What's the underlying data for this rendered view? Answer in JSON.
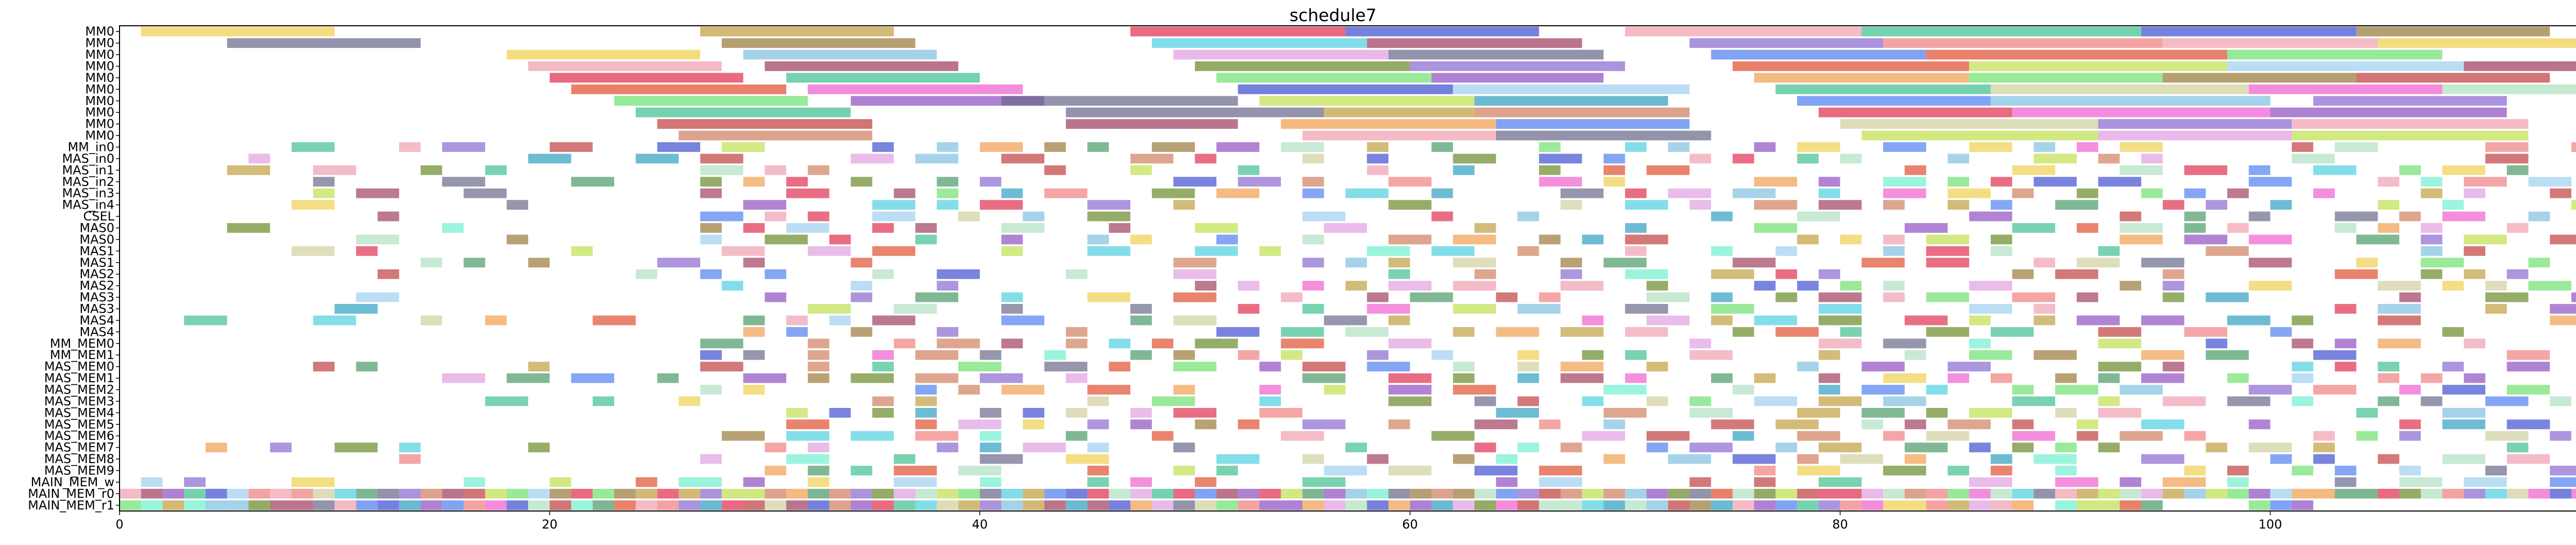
{
  "chart_data": {
    "type": "gantt",
    "title": "schedule7",
    "xlabel": "",
    "ylabel": "",
    "xlim": [
      0,
      118
    ],
    "x_ticks": [
      0,
      20,
      40,
      60,
      80,
      100
    ],
    "grid": false,
    "legend": "none",
    "rows": [
      "MM0",
      "MM0",
      "MM0",
      "MM0",
      "MM0",
      "MM0",
      "MM0",
      "MM0",
      "MM0",
      "MM0",
      "MM_in0",
      "MAS_in0",
      "MAS_in1",
      "MAS_in2",
      "MAS_in3",
      "MAS_in4",
      "CSEL",
      "MAS0",
      "MAS0",
      "MAS1",
      "MAS1",
      "MAS2",
      "MAS2",
      "MAS3",
      "MAS3",
      "MAS4",
      "MAS4",
      "MM_MEM0",
      "MM_MEM1",
      "MAS_MEM0",
      "MAS_MEM1",
      "MAS_MEM2",
      "MAS_MEM3",
      "MAS_MEM4",
      "MAS_MEM5",
      "MAS_MEM6",
      "MAS_MEM7",
      "MAS_MEM8",
      "MAS_MEM9",
      "MAIN_MEM_w",
      "MAIN_MEM_r0",
      "MAIN_MEM_r1"
    ],
    "palette": [
      "#f0a0b0",
      "#e03050",
      "#c0a040",
      "#6a8a2a",
      "#4050d0",
      "#a0d0f0",
      "#40c090",
      "#9050c0",
      "#f0d050",
      "#d08060",
      "#30a0c0",
      "#70e070",
      "#f060d0",
      "#6a6a8a",
      "#c04040",
      "#b0e0c0",
      "#f0a050",
      "#9a7a3a",
      "#50d0e0",
      "#e0a0e0",
      "#5080f0",
      "#a04060",
      "#c0e050",
      "#80c0e0",
      "#d0d0a0",
      "#4a9a6a",
      "#f08080",
      "#8a6ad0",
      "#70f0d0",
      "#e05030"
    ],
    "tasks": [
      {
        "row": 0,
        "start": 1,
        "end": 10,
        "color": 8
      },
      {
        "row": 0,
        "start": 27,
        "end": 36,
        "color": 2
      },
      {
        "row": 0,
        "start": 47,
        "end": 57,
        "color": 1
      },
      {
        "row": 0,
        "start": 57,
        "end": 66,
        "color": 4
      },
      {
        "row": 0,
        "start": 70,
        "end": 81,
        "color": 0
      },
      {
        "row": 0,
        "start": 81,
        "end": 94,
        "color": 6
      },
      {
        "row": 0,
        "start": 94,
        "end": 104,
        "color": 4
      },
      {
        "row": 0,
        "start": 104,
        "end": 113,
        "color": 17
      },
      {
        "row": 1,
        "start": 5,
        "end": 14,
        "color": 13
      },
      {
        "row": 1,
        "start": 28,
        "end": 37,
        "color": 17
      },
      {
        "row": 1,
        "start": 48,
        "end": 58,
        "color": 18
      },
      {
        "row": 1,
        "start": 58,
        "end": 68,
        "color": 21
      },
      {
        "row": 1,
        "start": 73,
        "end": 82,
        "color": 27
      },
      {
        "row": 1,
        "start": 82,
        "end": 95,
        "color": 26
      },
      {
        "row": 1,
        "start": 95,
        "end": 105,
        "color": 0
      },
      {
        "row": 1,
        "start": 105,
        "end": 116,
        "color": 8
      },
      {
        "row": 2,
        "start": 18,
        "end": 27,
        "color": 8
      },
      {
        "row": 2,
        "start": 29,
        "end": 38,
        "color": 23
      },
      {
        "row": 2,
        "start": 49,
        "end": 59,
        "color": 19
      },
      {
        "row": 2,
        "start": 59,
        "end": 69,
        "color": 13
      },
      {
        "row": 2,
        "start": 74,
        "end": 84,
        "color": 20
      },
      {
        "row": 2,
        "start": 84,
        "end": 98,
        "color": 29
      },
      {
        "row": 2,
        "start": 98,
        "end": 108,
        "color": 11
      },
      {
        "row": 3,
        "start": 19,
        "end": 28,
        "color": 0
      },
      {
        "row": 3,
        "start": 30,
        "end": 39,
        "color": 21
      },
      {
        "row": 3,
        "start": 50,
        "end": 60,
        "color": 3
      },
      {
        "row": 3,
        "start": 60,
        "end": 70,
        "color": 27
      },
      {
        "row": 3,
        "start": 75,
        "end": 86,
        "color": 29
      },
      {
        "row": 3,
        "start": 86,
        "end": 98,
        "color": 22
      },
      {
        "row": 3,
        "start": 98,
        "end": 109,
        "color": 5
      },
      {
        "row": 3,
        "start": 109,
        "end": 118,
        "color": 21
      },
      {
        "row": 4,
        "start": 20,
        "end": 29,
        "color": 1
      },
      {
        "row": 4,
        "start": 31,
        "end": 40,
        "color": 6
      },
      {
        "row": 4,
        "start": 51,
        "end": 61,
        "color": 11
      },
      {
        "row": 4,
        "start": 61,
        "end": 69,
        "color": 7
      },
      {
        "row": 4,
        "start": 76,
        "end": 86,
        "color": 16
      },
      {
        "row": 4,
        "start": 86,
        "end": 95,
        "color": 11
      },
      {
        "row": 4,
        "start": 95,
        "end": 104,
        "color": 17
      },
      {
        "row": 4,
        "start": 104,
        "end": 113,
        "color": 14
      },
      {
        "row": 5,
        "start": 21,
        "end": 31,
        "color": 29
      },
      {
        "row": 5,
        "start": 32,
        "end": 42,
        "color": 12
      },
      {
        "row": 5,
        "start": 52,
        "end": 62,
        "color": 4
      },
      {
        "row": 5,
        "start": 62,
        "end": 73,
        "color": 5
      },
      {
        "row": 5,
        "start": 77,
        "end": 87,
        "color": 6
      },
      {
        "row": 5,
        "start": 87,
        "end": 99,
        "color": 24
      },
      {
        "row": 5,
        "start": 99,
        "end": 108,
        "color": 12
      },
      {
        "row": 5,
        "start": 108,
        "end": 118,
        "color": 15
      },
      {
        "row": 6,
        "start": 23,
        "end": 32,
        "color": 11
      },
      {
        "row": 6,
        "start": 34,
        "end": 43,
        "color": 7
      },
      {
        "row": 6,
        "start": 41,
        "end": 52,
        "color": 13
      },
      {
        "row": 6,
        "start": 53,
        "end": 63,
        "color": 22
      },
      {
        "row": 6,
        "start": 63,
        "end": 72,
        "color": 10
      },
      {
        "row": 6,
        "start": 78,
        "end": 87,
        "color": 20
      },
      {
        "row": 6,
        "start": 87,
        "end": 100,
        "color": 23
      },
      {
        "row": 6,
        "start": 102,
        "end": 111,
        "color": 27
      },
      {
        "row": 7,
        "start": 24,
        "end": 34,
        "color": 6
      },
      {
        "row": 7,
        "start": 44,
        "end": 56,
        "color": 13
      },
      {
        "row": 7,
        "start": 56,
        "end": 63,
        "color": 2
      },
      {
        "row": 7,
        "start": 63,
        "end": 73,
        "color": 9
      },
      {
        "row": 7,
        "start": 79,
        "end": 88,
        "color": 1
      },
      {
        "row": 7,
        "start": 88,
        "end": 100,
        "color": 12
      },
      {
        "row": 7,
        "start": 100,
        "end": 111,
        "color": 7
      },
      {
        "row": 8,
        "start": 25,
        "end": 35,
        "color": 14
      },
      {
        "row": 8,
        "start": 44,
        "end": 52,
        "color": 21
      },
      {
        "row": 8,
        "start": 54,
        "end": 64,
        "color": 16
      },
      {
        "row": 8,
        "start": 64,
        "end": 73,
        "color": 20
      },
      {
        "row": 8,
        "start": 80,
        "end": 92,
        "color": 24
      },
      {
        "row": 8,
        "start": 92,
        "end": 101,
        "color": 27
      },
      {
        "row": 8,
        "start": 101,
        "end": 112,
        "color": 0
      },
      {
        "row": 9,
        "start": 26,
        "end": 35,
        "color": 9
      },
      {
        "row": 9,
        "start": 55,
        "end": 64,
        "color": 0
      },
      {
        "row": 9,
        "start": 64,
        "end": 74,
        "color": 13
      },
      {
        "row": 9,
        "start": 81,
        "end": 92,
        "color": 22
      },
      {
        "row": 9,
        "start": 92,
        "end": 101,
        "color": 19
      },
      {
        "row": 9,
        "start": 101,
        "end": 112,
        "color": 22
      }
    ]
  }
}
